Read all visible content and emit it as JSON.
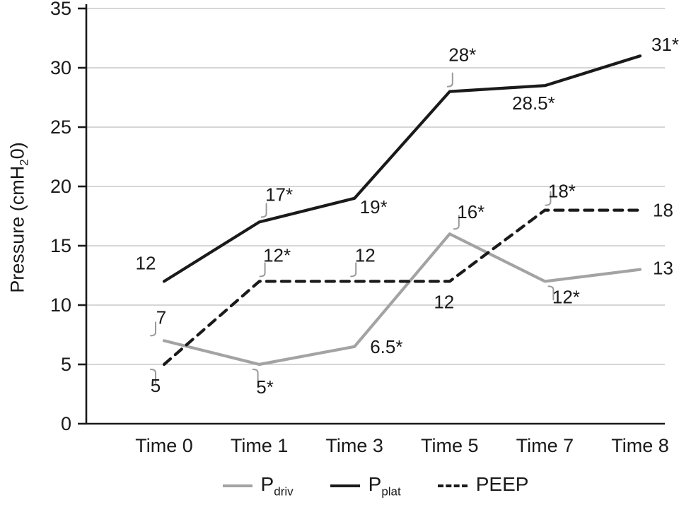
{
  "chart_data": {
    "type": "line",
    "title": "",
    "xlabel": "",
    "ylabel": {
      "prefix": "Pressure (cmH",
      "sub": "2",
      "suffix": "0)"
    },
    "categories": [
      "Time 0",
      "Time 1",
      "Time 3",
      "Time 5",
      "Time 7",
      "Time 8"
    ],
    "ylim": [
      0,
      35
    ],
    "yticks": [
      0,
      5,
      10,
      15,
      20,
      25,
      30,
      35
    ],
    "grid": true,
    "legend_position": "bottom",
    "series": [
      {
        "name": "Pdriv",
        "display": {
          "main": "P",
          "sub": "driv"
        },
        "color": "#a3a3a3",
        "dash": false,
        "values": [
          7,
          5,
          6.5,
          16,
          12,
          13
        ],
        "point_labels": [
          "7",
          "5*",
          "6.5*",
          "16*",
          "12*",
          "13"
        ]
      },
      {
        "name": "Pplat",
        "display": {
          "main": "P",
          "sub": "plat"
        },
        "color": "#1a1a1a",
        "dash": false,
        "values": [
          12,
          17,
          19,
          28,
          28.5,
          31
        ],
        "point_labels": [
          "12",
          "17*",
          "19*",
          "28*",
          "28.5*",
          "31*"
        ]
      },
      {
        "name": "PEEP",
        "display": {
          "main": "PEEP",
          "sub": ""
        },
        "color": "#1a1a1a",
        "dash": true,
        "values": [
          5,
          12,
          12,
          12,
          18,
          18
        ],
        "point_labels": [
          "5",
          "12*",
          "12",
          "12",
          "18*",
          "18"
        ]
      }
    ]
  },
  "legend": {
    "items": [
      {
        "main": "P",
        "sub": "driv"
      },
      {
        "main": "P",
        "sub": "plat"
      },
      {
        "main": "PEEP",
        "sub": ""
      }
    ]
  },
  "colors": {
    "axis": "#1a1a1a",
    "grid": "#c9c9c9",
    "text": "#1a1a1a",
    "leader": "#9a9a9a",
    "pdriv": "#a3a3a3",
    "pplat": "#1a1a1a",
    "peep": "#1a1a1a"
  }
}
